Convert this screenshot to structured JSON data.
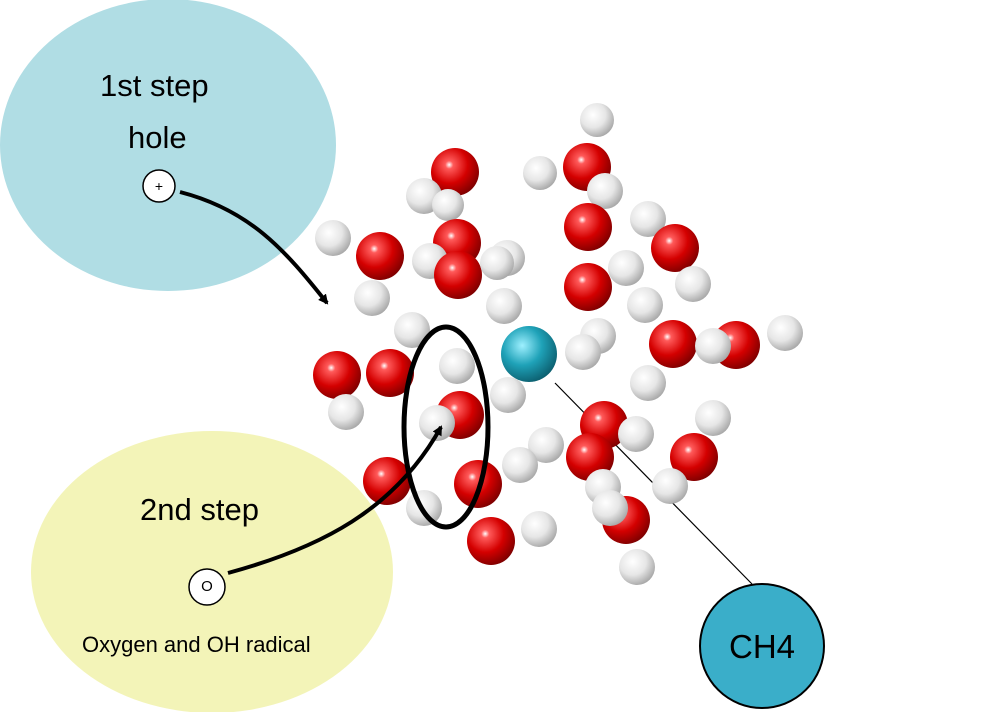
{
  "step1": {
    "title": "1st step",
    "subtitle": "hole",
    "symbol": "+",
    "color": "#b0dde4"
  },
  "step2": {
    "title": "2nd step",
    "subtitle": "Oxygen and OH radical",
    "symbol": "O",
    "color": "#f3f4b8"
  },
  "ch4": {
    "label": "CH4",
    "color": "#3aaec9"
  },
  "molecule_colors": {
    "oxygen": "#d40000",
    "hydrogen": "#ececec",
    "carbon": "#25a3b8"
  }
}
